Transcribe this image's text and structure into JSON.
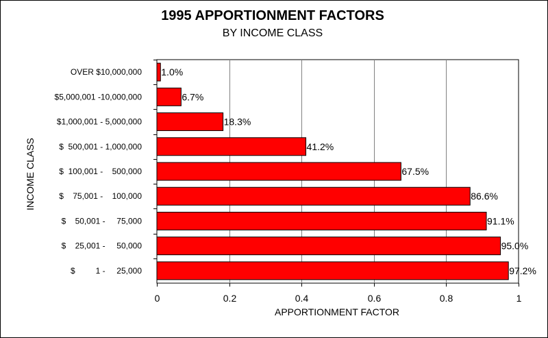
{
  "chart_data": {
    "type": "bar",
    "orientation": "horizontal",
    "title": "1995 APPORTIONMENT FACTORS",
    "subtitle": "BY INCOME CLASS",
    "xlabel": "APPORTIONMENT FACTOR",
    "ylabel": "INCOME CLASS",
    "xlim": [
      0,
      1
    ],
    "xticks": [
      "0",
      "0.2",
      "0.4",
      "0.6",
      "0.8",
      "1"
    ],
    "grid": true,
    "bar_color": "#ff0000",
    "categories": [
      "OVER $10,000,000",
      "$5,000,001 -10,000,000",
      "$1,000,001 - 5,000,000",
      "$  500,001 - 1,000,000",
      "$  100,001 -    500,000",
      "$    75,001 -    100,000",
      "$    50,001 -     75,000",
      "$    25,001 -     50,000",
      "$         1 -     25,000"
    ],
    "values": [
      0.01,
      0.067,
      0.183,
      0.412,
      0.675,
      0.866,
      0.911,
      0.95,
      0.972
    ],
    "labels": [
      "1.0%",
      "6.7%",
      "18.3%",
      "41.2%",
      "67.5%",
      "86.6%",
      "91.1%",
      "95.0%",
      "97.2%"
    ]
  }
}
